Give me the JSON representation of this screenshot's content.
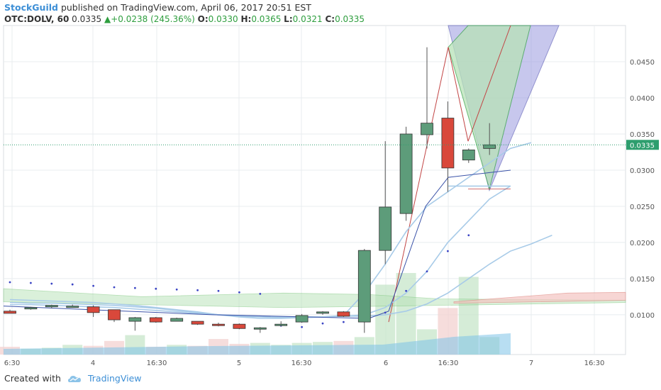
{
  "header": {
    "publisher": "StockGuild",
    "published_text": "published on TradingView.com, April 06, 2017 20:51 EST"
  },
  "ohlc": {
    "symbol": "OTC:DOLV, 60",
    "last": "0.0335",
    "change": "+0.0238 (245.36%)",
    "arrow": "▲",
    "o_label": "O:",
    "o": "0.0330",
    "h_label": "H:",
    "h": "0.0365",
    "l_label": "L:",
    "l": "0.0321",
    "c_label": "C:",
    "c": "0.0335"
  },
  "footer": {
    "created_with": "Created with",
    "brand": "TradingView"
  },
  "colors": {
    "up": "#5d9c7a",
    "down": "#d9483b",
    "grid": "#e8ecef",
    "price_line": "#2e9e6e",
    "price_tag": "#2e9e6e",
    "ma_light": "#a8cbe8",
    "pitchfork_fill": "#9b9be0",
    "green_zone": "#b7e2b7"
  },
  "chart_data": {
    "type": "candlestick",
    "ylim": [
      0.0045,
      0.05
    ],
    "yticks": [
      "0.0450",
      "0.0400",
      "0.0350",
      "0.0300",
      "0.0250",
      "0.0200",
      "0.0150",
      "0.0100"
    ],
    "xticks": [
      "6:30",
      "4",
      "16:30",
      "5",
      "16:30",
      "6",
      "16:30",
      "7",
      "16:30"
    ],
    "last_price_label": "0.0335",
    "candles": [
      {
        "o": 0.0105,
        "h": 0.0107,
        "l": 0.0102,
        "c": 0.0102
      },
      {
        "o": 0.0109,
        "h": 0.0111,
        "l": 0.0107,
        "c": 0.011
      },
      {
        "o": 0.0111,
        "h": 0.0114,
        "l": 0.0109,
        "c": 0.0113
      },
      {
        "o": 0.0112,
        "h": 0.0114,
        "l": 0.011,
        "c": 0.0112
      },
      {
        "o": 0.0111,
        "h": 0.0113,
        "l": 0.0097,
        "c": 0.0103
      },
      {
        "o": 0.0107,
        "h": 0.0107,
        "l": 0.009,
        "c": 0.0093
      },
      {
        "o": 0.0091,
        "h": 0.0097,
        "l": 0.0078,
        "c": 0.0096
      },
      {
        "o": 0.0096,
        "h": 0.0097,
        "l": 0.0089,
        "c": 0.009
      },
      {
        "o": 0.0091,
        "h": 0.0096,
        "l": 0.0091,
        "c": 0.0095
      },
      {
        "o": 0.0091,
        "h": 0.0091,
        "l": 0.0086,
        "c": 0.0087
      },
      {
        "o": 0.0087,
        "h": 0.0089,
        "l": 0.0084,
        "c": 0.0085
      },
      {
        "o": 0.0087,
        "h": 0.0088,
        "l": 0.008,
        "c": 0.0081
      },
      {
        "o": 0.0081,
        "h": 0.0083,
        "l": 0.0075,
        "c": 0.0082
      },
      {
        "o": 0.0085,
        "h": 0.0091,
        "l": 0.0084,
        "c": 0.0087
      },
      {
        "o": 0.009,
        "h": 0.0101,
        "l": 0.0089,
        "c": 0.0099
      },
      {
        "o": 0.0102,
        "h": 0.0105,
        "l": 0.01,
        "c": 0.0104
      },
      {
        "o": 0.0104,
        "h": 0.0105,
        "l": 0.0097,
        "c": 0.0098
      },
      {
        "o": 0.009,
        "h": 0.0191,
        "l": 0.0075,
        "c": 0.0189
      },
      {
        "o": 0.0189,
        "h": 0.034,
        "l": 0.017,
        "c": 0.0249
      },
      {
        "o": 0.024,
        "h": 0.036,
        "l": 0.023,
        "c": 0.035
      },
      {
        "o": 0.0349,
        "h": 0.047,
        "l": 0.033,
        "c": 0.0365
      },
      {
        "o": 0.0372,
        "h": 0.0395,
        "l": 0.027,
        "c": 0.0303
      },
      {
        "o": 0.0314,
        "h": 0.033,
        "l": 0.031,
        "c": 0.0328
      },
      {
        "o": 0.033,
        "h": 0.0365,
        "l": 0.0321,
        "c": 0.0335
      }
    ],
    "volumes": [
      0.4,
      0.3,
      0.35,
      0.5,
      0.45,
      0.7,
      1.0,
      0.4,
      0.5,
      0.45,
      0.8,
      0.55,
      0.6,
      0.5,
      0.6,
      0.65,
      0.7,
      0.9,
      3.6,
      4.2,
      1.3,
      2.4,
      4.0,
      0.9
    ],
    "parabolic_sar": [
      0.0145,
      0.0144,
      0.0143,
      0.0142,
      0.014,
      0.0138,
      0.0137,
      0.0136,
      0.0135,
      0.0134,
      0.0133,
      0.0131,
      0.0129,
      0.0085,
      0.0083,
      0.0088,
      0.009,
      0.0093,
      0.0103,
      0.0133,
      0.016,
      0.0188,
      0.021
    ],
    "ma_lines": [
      [
        0.0121,
        0.012,
        0.0119,
        0.0118,
        0.0117,
        0.0115,
        0.0113,
        0.011,
        0.0107,
        0.0104,
        0.01,
        0.0097,
        0.0095,
        0.0095,
        0.0096,
        0.0097,
        0.0099,
        0.013,
        0.017,
        0.0215,
        0.025,
        0.027,
        0.029,
        0.031,
        0.033,
        0.0338
      ],
      [
        0.0117,
        0.0116,
        0.0116,
        0.0115,
        0.0114,
        0.0113,
        0.0111,
        0.0109,
        0.0106,
        0.0103,
        0.01,
        0.0098,
        0.0097,
        0.0096,
        0.0096,
        0.0097,
        0.0098,
        0.01,
        0.011,
        0.013,
        0.016,
        0.02,
        0.023,
        0.026,
        0.0278
      ],
      [
        0.0114,
        0.0114,
        0.0113,
        0.0112,
        0.0111,
        0.011,
        0.0108,
        0.0106,
        0.0104,
        0.0102,
        0.01,
        0.0099,
        0.0098,
        0.0097,
        0.0097,
        0.0097,
        0.0098,
        0.0098,
        0.01,
        0.0105,
        0.0115,
        0.013,
        0.015,
        0.017,
        0.0188,
        0.0198,
        0.021
      ]
    ]
  }
}
